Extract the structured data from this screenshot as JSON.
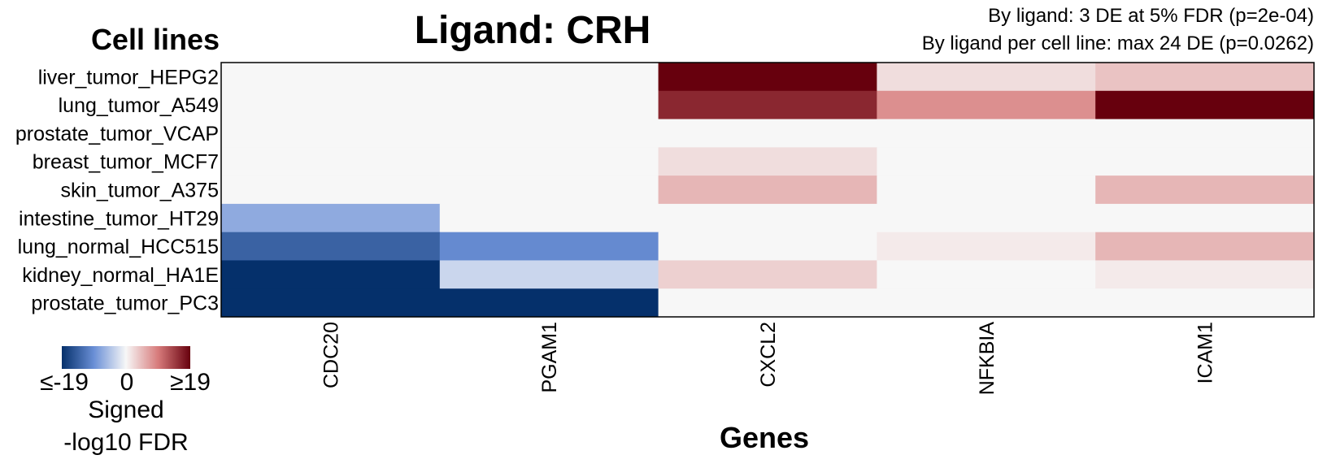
{
  "chart_data": {
    "type": "heatmap",
    "title": "Ligand: CRH",
    "subtitle_lines": [
      "By ligand: 3 DE at 5% FDR (p=2e-04)",
      "By ligand per cell line: max 24 DE (p=0.0262)"
    ],
    "ylabel": "Cell lines",
    "xlabel": "Genes",
    "rows": [
      "liver_tumor_HEPG2",
      "lung_tumor_A549",
      "prostate_tumor_VCAP",
      "breast_tumor_MCF7",
      "skin_tumor_A375",
      "intestine_tumor_HT29",
      "lung_normal_HCC515",
      "kidney_normal_HA1E",
      "prostate_tumor_PC3"
    ],
    "columns": [
      "CDC20",
      "PGAM1",
      "CXCL2",
      "NFKBIA",
      "ICAM1"
    ],
    "values": [
      [
        0,
        0,
        19,
        2,
        4
      ],
      [
        0,
        0,
        16,
        8,
        19
      ],
      [
        0,
        0,
        0,
        0,
        0
      ],
      [
        0,
        0,
        2,
        0,
        0
      ],
      [
        0,
        0,
        5,
        0,
        5
      ],
      [
        -7,
        0,
        0,
        0,
        0
      ],
      [
        -14,
        -10,
        0,
        1,
        5
      ],
      [
        -19,
        -3,
        3,
        0,
        1
      ],
      [
        -19,
        -19,
        0,
        0,
        0
      ]
    ],
    "color_range": [
      -19,
      19
    ],
    "colors": {
      "low": "#05306b",
      "mid": "#f7f7f7",
      "high": "#67000d"
    },
    "legend": {
      "tick_labels": [
        "≤-19",
        "0",
        "≥19"
      ],
      "title_lines": [
        "Signed",
        "-log10 FDR"
      ]
    }
  }
}
